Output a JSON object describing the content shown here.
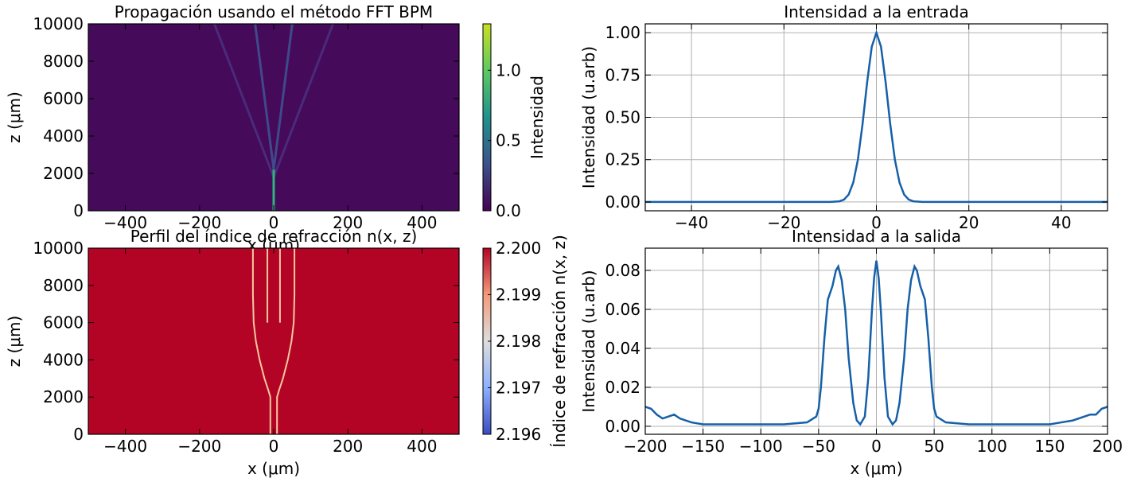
{
  "chart_data": [
    {
      "type": "image",
      "title": "Propagación usando el método FFT BPM",
      "x_label": "x (μm)",
      "y_label": "z (μm)",
      "xlim": [
        -500,
        500
      ],
      "ylim": [
        0,
        10000
      ],
      "xticks": [
        {
          "value": -400,
          "label": "−400"
        },
        {
          "value": -200,
          "label": "−200"
        },
        0,
        200,
        400
      ],
      "yticks": [
        0,
        2000,
        4000,
        6000,
        8000,
        10000
      ],
      "background": "#450a5a",
      "series": [
        {
          "x": [
            0,
            -160
          ],
          "values": [
            1800,
            10000
          ],
          "color": "#4a2b7a",
          "line_width": 3
        },
        {
          "x": [
            0,
            160
          ],
          "values": [
            1800,
            10000
          ],
          "color": "#4a2b7a",
          "line_width": 3
        },
        {
          "x": [
            0,
            -50
          ],
          "values": [
            2200,
            10000
          ],
          "color": "#3f4a8a",
          "line_width": 3
        },
        {
          "x": [
            0,
            50
          ],
          "values": [
            2200,
            10000
          ],
          "color": "#3f4a8a",
          "line_width": 3
        },
        {
          "x": [
            0,
            0
          ],
          "values": [
            0,
            2200
          ],
          "color": "#2fb47c",
          "line_width": 3
        }
      ],
      "colorbar": {
        "label": "Intensidad",
        "lim": [
          0,
          1.33
        ],
        "ticks": [
          {
            "value": 0,
            "label": "0.0"
          },
          0.5,
          {
            "value": 1,
            "label": "1.0"
          }
        ],
        "colors": [
          "#440154",
          "#3b528b",
          "#21918c",
          "#5ec962",
          "#c8e020"
        ]
      }
    },
    {
      "type": "image",
      "title": "Perfil del índice de refracción n(x, z)",
      "x_label": "x (μm)",
      "y_label": "z (μm)",
      "xlim": [
        -500,
        500
      ],
      "ylim": [
        0,
        10000
      ],
      "xticks": [
        {
          "value": -400,
          "label": "−400"
        },
        {
          "value": -200,
          "label": "−200"
        },
        0,
        200,
        400
      ],
      "yticks": [
        0,
        2000,
        4000,
        6000,
        8000,
        10000
      ],
      "background": "#b40426",
      "series": [
        {
          "x": [
            -9,
            -9,
            -15,
            -25,
            -38,
            -48,
            -54,
            -56,
            -56
          ],
          "values": [
            0,
            2000,
            2400,
            3000,
            4000,
            5000,
            6000,
            7500,
            10000
          ],
          "color": "#f5c8a0",
          "line_width": 2
        },
        {
          "x": [
            9,
            9,
            15,
            25,
            38,
            48,
            54,
            56,
            56
          ],
          "values": [
            0,
            2000,
            2400,
            3000,
            4000,
            5000,
            6000,
            7500,
            10000
          ],
          "color": "#f5c8a0",
          "line_width": 2
        },
        {
          "x": [
            -17,
            -17
          ],
          "values": [
            6000,
            10000
          ],
          "color": "#f5c8a0",
          "line_width": 2
        },
        {
          "x": [
            17,
            17
          ],
          "values": [
            6000,
            10000
          ],
          "color": "#f5c8a0",
          "line_width": 2
        }
      ],
      "colorbar": {
        "label": "Índice de refracción n(x, z)",
        "lim": [
          2.196,
          2.2
        ],
        "ticks": [
          2.196,
          2.197,
          2.198,
          2.199,
          {
            "value": 2.2,
            "label": "2.200"
          }
        ],
        "colors": [
          "#3b4cc0",
          "#8db0fe",
          "#dddddd",
          "#f49a7b",
          "#b40426"
        ]
      }
    },
    {
      "type": "line",
      "title": "Intensidad a la entrada",
      "y_label": "Intensidad (u.arb)",
      "xlim": [
        -50,
        50
      ],
      "ylim": [
        -0.052,
        1.052
      ],
      "xticks": [
        {
          "value": -40,
          "label": "−40"
        },
        {
          "value": -20,
          "label": "−20"
        },
        0,
        20,
        40
      ],
      "yticks": [
        {
          "value": 0,
          "label": "0.00"
        },
        0.25,
        {
          "value": 0.5,
          "label": "0.50"
        },
        0.75,
        {
          "value": 1,
          "label": "1.00"
        }
      ],
      "grid": true,
      "series": [
        {
          "color": "#1560a8",
          "x": [
            -50,
            -10,
            -8,
            -7,
            -6,
            -5,
            -4,
            -3,
            -2,
            -1,
            0,
            1,
            2,
            3,
            4,
            5,
            6,
            7,
            8,
            10,
            50
          ],
          "values": [
            0,
            0,
            0.004,
            0.014,
            0.044,
            0.115,
            0.25,
            0.459,
            0.707,
            0.917,
            1,
            0.917,
            0.707,
            0.459,
            0.25,
            0.115,
            0.044,
            0.014,
            0.004,
            0,
            0
          ]
        }
      ]
    },
    {
      "type": "line",
      "title": "Intensidad a la salida",
      "x_label": "x (μm)",
      "y_label": "Intensidad (u.arb)",
      "xlim": [
        -200,
        200
      ],
      "ylim": [
        -0.0041,
        0.0914
      ],
      "xticks": [
        {
          "value": -200,
          "label": "−200"
        },
        {
          "value": -150,
          "label": "−150"
        },
        {
          "value": -100,
          "label": "−100"
        },
        {
          "value": -50,
          "label": "−50"
        },
        0,
        50,
        100,
        150,
        200
      ],
      "yticks": [
        {
          "value": 0,
          "label": "0.00"
        },
        0.02,
        0.04,
        0.06,
        0.08
      ],
      "grid": true,
      "series": [
        {
          "color": "#1560a8",
          "x": [
            -200,
            -195,
            -190,
            -185,
            -180,
            -175,
            -170,
            -160,
            -150,
            -120,
            -100,
            -80,
            -60,
            -52,
            -50,
            -48,
            -45,
            -42,
            -38,
            -35,
            -33,
            -30,
            -27,
            -24,
            -20,
            -17,
            -14,
            -10,
            -7,
            -4,
            -2,
            0,
            2,
            4,
            7,
            10,
            14,
            17,
            20,
            24,
            27,
            30,
            33,
            35,
            38,
            42,
            45,
            48,
            50,
            52,
            60,
            80,
            100,
            120,
            150,
            160,
            170,
            180,
            185,
            190,
            195,
            200
          ],
          "values": [
            0.01,
            0.009,
            0.006,
            0.004,
            0.005,
            0.006,
            0.004,
            0.002,
            0.001,
            0.001,
            0.001,
            0.001,
            0.002,
            0.005,
            0.009,
            0.02,
            0.045,
            0.065,
            0.072,
            0.08,
            0.082,
            0.075,
            0.06,
            0.035,
            0.012,
            0.003,
            0.001,
            0.005,
            0.025,
            0.058,
            0.076,
            0.085,
            0.076,
            0.058,
            0.025,
            0.005,
            0.001,
            0.003,
            0.012,
            0.035,
            0.06,
            0.075,
            0.082,
            0.08,
            0.072,
            0.065,
            0.045,
            0.02,
            0.009,
            0.005,
            0.002,
            0.001,
            0.001,
            0.001,
            0.001,
            0.002,
            0.003,
            0.005,
            0.006,
            0.006,
            0.009,
            0.01
          ]
        }
      ]
    }
  ]
}
